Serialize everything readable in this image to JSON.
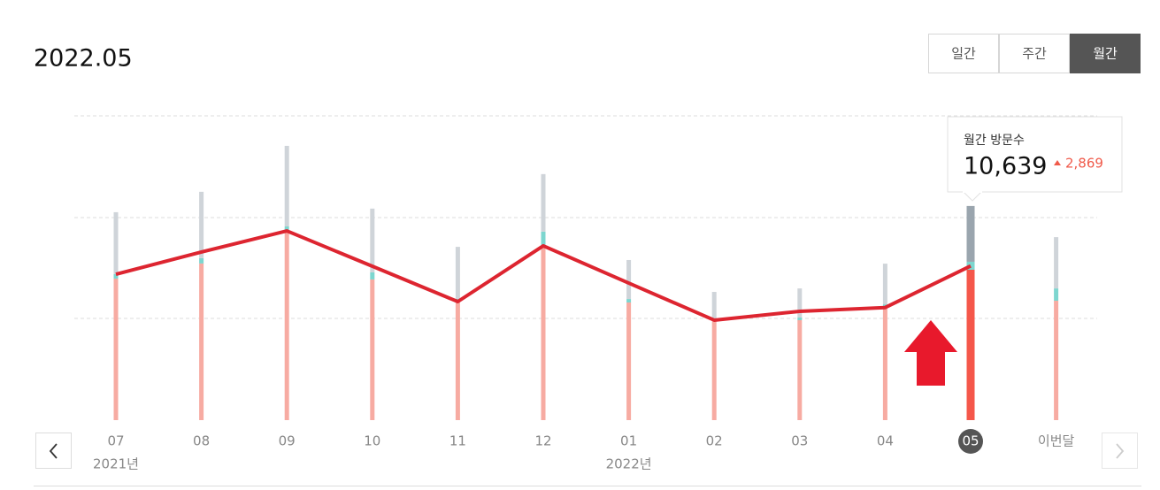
{
  "header": {
    "title": "2022.05",
    "tabs": [
      "일간",
      "주간",
      "월간"
    ],
    "active_tab": 2
  },
  "chart_data": {
    "type": "stacked-bar-line",
    "categories": [
      "07",
      "08",
      "09",
      "10",
      "11",
      "12",
      "01",
      "02",
      "03",
      "04",
      "05",
      "이번달"
    ],
    "year_labels": [
      {
        "index": 0,
        "label": "2021년"
      },
      {
        "index": 6,
        "label": "2022년"
      }
    ],
    "selected_index": 10,
    "ylim": [
      0,
      21000
    ],
    "bars": [
      {
        "color": "#f7aba2",
        "highlight_color": "#f5574a",
        "values": [
          9770,
          10810,
          13000,
          9710,
          8180,
          12090,
          8120,
          6900,
          6900,
          7810,
          10380,
          8240
        ]
      },
      {
        "color": "#7dd6cf",
        "highlight_color": "#7dd6cf",
        "values": [
          310,
          370,
          370,
          490,
          180,
          920,
          240,
          120,
          180,
          180,
          550,
          850
        ]
      },
      {
        "color": "#cfd4d9",
        "highlight_color": "#9aa5ae",
        "values": [
          4270,
          4580,
          5560,
          4400,
          3600,
          3970,
          2690,
          1830,
          2010,
          2810,
          3850,
          3540
        ]
      }
    ],
    "line": {
      "color": "#dd2530",
      "values": [
        10070,
        11600,
        13060,
        10620,
        8180,
        12030,
        9460,
        6900,
        7510,
        7770,
        10639,
        null
      ]
    },
    "tooltip": {
      "title": "월간 방문수",
      "value": "10,639",
      "change": "2,869"
    }
  }
}
